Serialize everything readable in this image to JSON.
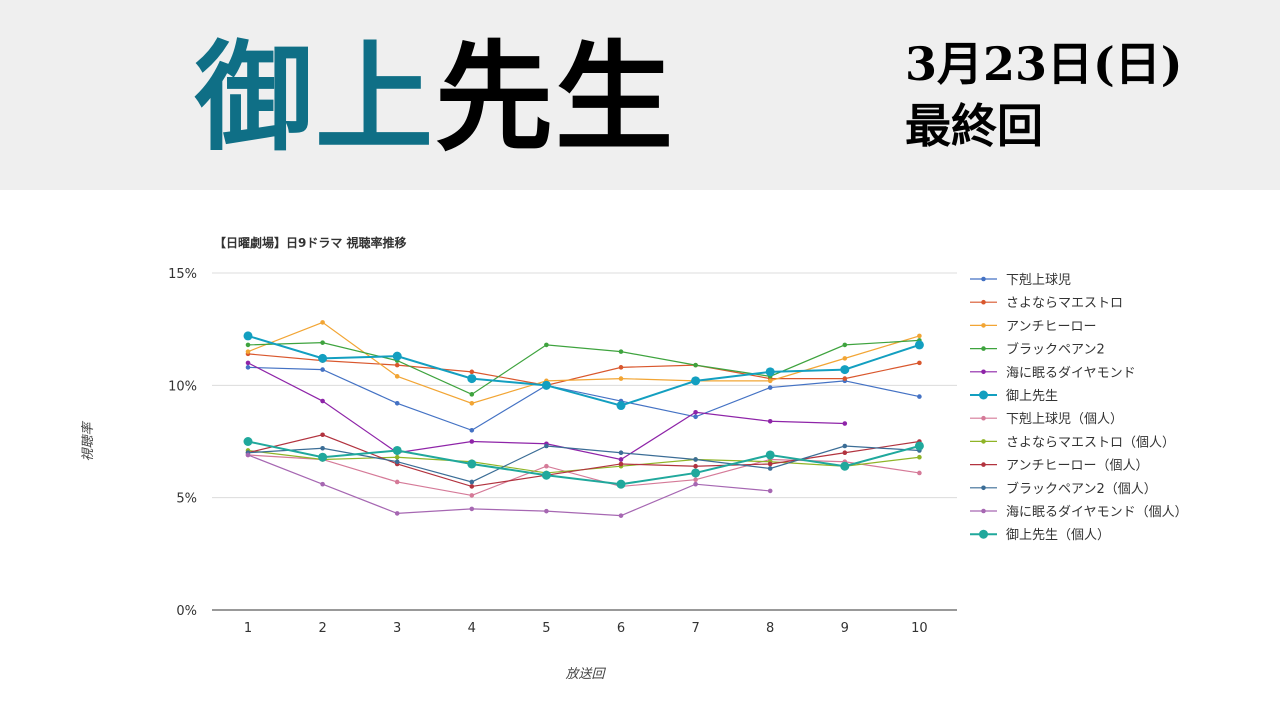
{
  "header": {
    "title_part1": "御上",
    "title_part2": "先生",
    "date": "3月23日(日)",
    "episode": "最終回"
  },
  "chart_data": {
    "type": "line",
    "title": "【日曜劇場】日9ドラマ 視聴率推移",
    "xlabel": "放送回",
    "ylabel": "視聴率",
    "ylim": [
      0,
      15
    ],
    "yticks": [
      "0%",
      "5%",
      "10%",
      "15%"
    ],
    "x": [
      1,
      2,
      3,
      4,
      5,
      6,
      7,
      8,
      9,
      10
    ],
    "grid": true,
    "legend_position": "right",
    "series": [
      {
        "name": "下剋上球児",
        "color": "#4472c4",
        "values": [
          10.8,
          10.7,
          9.2,
          8.0,
          10.0,
          9.3,
          8.6,
          9.9,
          10.2,
          9.5
        ]
      },
      {
        "name": "さよならマエストロ",
        "color": "#d9572d",
        "values": [
          11.4,
          11.1,
          10.9,
          10.6,
          10.0,
          10.8,
          10.9,
          10.3,
          10.3,
          11.0
        ]
      },
      {
        "name": "アンチヒーロー",
        "color": "#f2a534",
        "values": [
          11.5,
          12.8,
          10.4,
          9.2,
          10.2,
          10.3,
          10.2,
          10.2,
          11.2,
          12.2
        ]
      },
      {
        "name": "ブラックペアン2",
        "color": "#3ea33e",
        "values": [
          11.8,
          11.9,
          11.1,
          9.6,
          11.8,
          11.5,
          10.9,
          10.4,
          11.8,
          12.0
        ]
      },
      {
        "name": "海に眠るダイヤモンド",
        "color": "#8e24a8",
        "values": [
          11.0,
          9.3,
          7.0,
          7.5,
          7.4,
          6.7,
          8.8,
          8.4,
          8.3,
          null
        ]
      },
      {
        "name": "御上先生",
        "color": "#139fc0",
        "bold": true,
        "values": [
          12.2,
          11.2,
          11.3,
          10.3,
          10.0,
          9.1,
          10.2,
          10.6,
          10.7,
          11.8
        ]
      },
      {
        "name": "下剋上球児（個人）",
        "color": "#d57a98",
        "values": [
          6.9,
          6.7,
          5.7,
          5.1,
          6.4,
          5.5,
          5.8,
          6.7,
          6.6,
          6.1
        ]
      },
      {
        "name": "さよならマエストロ（個人）",
        "color": "#8fb427",
        "values": [
          7.1,
          6.7,
          6.8,
          6.6,
          6.1,
          6.4,
          6.7,
          6.6,
          6.4,
          6.8
        ]
      },
      {
        "name": "アンチヒーロー（個人）",
        "color": "#b2333f",
        "values": [
          7.0,
          7.8,
          6.5,
          5.5,
          6.0,
          6.5,
          6.4,
          6.5,
          7.0,
          7.5
        ]
      },
      {
        "name": "ブラックペアン2（個人）",
        "color": "#3b6d96",
        "values": [
          7.0,
          7.2,
          6.6,
          5.7,
          7.3,
          7.0,
          6.7,
          6.3,
          7.3,
          7.1
        ]
      },
      {
        "name": "海に眠るダイヤモンド（個人）",
        "color": "#a667b2",
        "values": [
          6.9,
          5.6,
          4.3,
          4.5,
          4.4,
          4.2,
          5.6,
          5.3,
          null,
          null
        ]
      },
      {
        "name": "御上先生（個人）",
        "color": "#20a89c",
        "bold": true,
        "values": [
          7.5,
          6.8,
          7.1,
          6.5,
          6.0,
          5.6,
          6.1,
          6.9,
          6.4,
          7.3
        ]
      }
    ]
  }
}
